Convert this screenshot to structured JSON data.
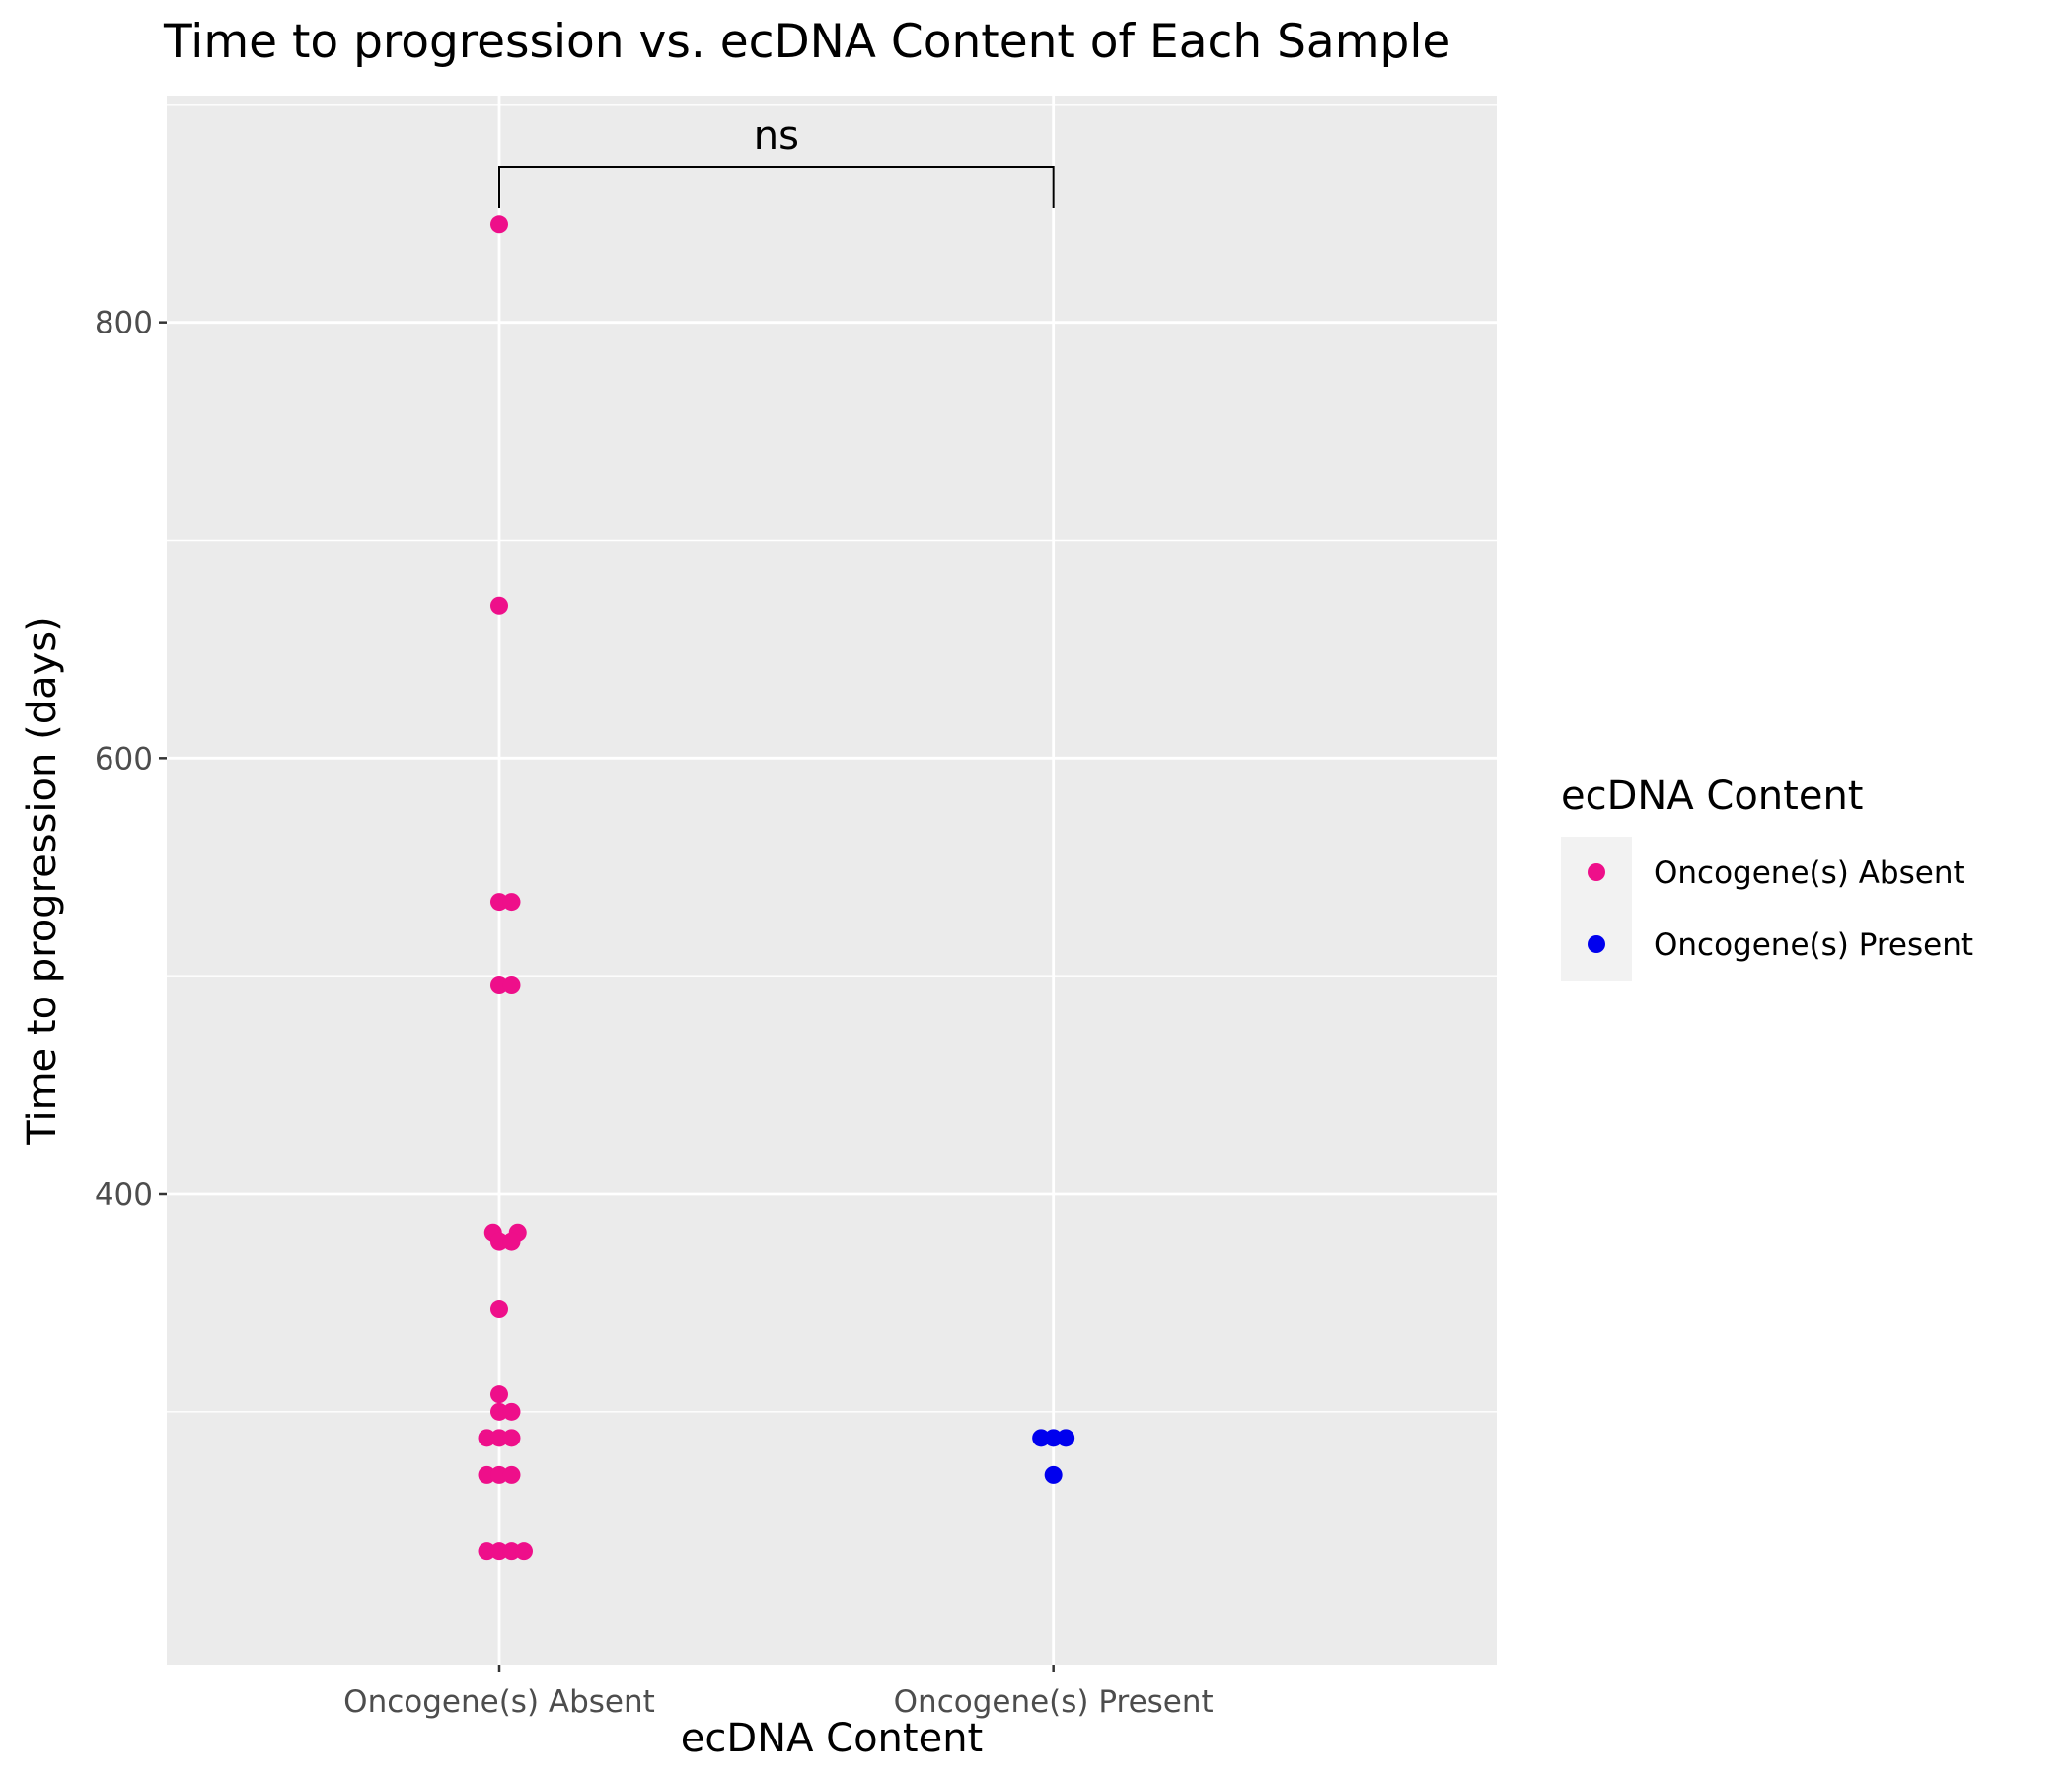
{
  "chart_data": {
    "type": "scatter",
    "title": "Time to progression vs. ecDNA Content of Each Sample",
    "xlabel": "ecDNA Content",
    "ylabel": "Time to progression (days)",
    "categories": [
      "Oncogene(s) Absent",
      "Oncogene(s) Present"
    ],
    "ylim": [
      184,
      904
    ],
    "yticks": [
      400,
      600,
      800
    ],
    "y_minor_ticks": [
      300,
      500,
      700,
      900
    ],
    "grid": true,
    "legend": {
      "title": "ecDNA Content",
      "position": "right"
    },
    "series": [
      {
        "name": "Oncogene(s) Absent",
        "color": "#ee0f8a",
        "points": [
          {
            "x": "Oncogene(s) Absent",
            "y": 845,
            "dodge": 0
          },
          {
            "x": "Oncogene(s) Absent",
            "y": 670,
            "dodge": 0
          },
          {
            "x": "Oncogene(s) Absent",
            "y": 534,
            "dodge": 0
          },
          {
            "x": "Oncogene(s) Absent",
            "y": 534,
            "dodge": 1
          },
          {
            "x": "Oncogene(s) Absent",
            "y": 496,
            "dodge": 0
          },
          {
            "x": "Oncogene(s) Absent",
            "y": 496,
            "dodge": 1
          },
          {
            "x": "Oncogene(s) Absent",
            "y": 382,
            "dodge": -0.5
          },
          {
            "x": "Oncogene(s) Absent",
            "y": 382,
            "dodge": 1.5
          },
          {
            "x": "Oncogene(s) Absent",
            "y": 378,
            "dodge": 0
          },
          {
            "x": "Oncogene(s) Absent",
            "y": 378,
            "dodge": 1
          },
          {
            "x": "Oncogene(s) Absent",
            "y": 347,
            "dodge": 0
          },
          {
            "x": "Oncogene(s) Absent",
            "y": 308,
            "dodge": 0
          },
          {
            "x": "Oncogene(s) Absent",
            "y": 300,
            "dodge": 0
          },
          {
            "x": "Oncogene(s) Absent",
            "y": 300,
            "dodge": 1
          },
          {
            "x": "Oncogene(s) Absent",
            "y": 288,
            "dodge": -1
          },
          {
            "x": "Oncogene(s) Absent",
            "y": 288,
            "dodge": 0
          },
          {
            "x": "Oncogene(s) Absent",
            "y": 288,
            "dodge": 1
          },
          {
            "x": "Oncogene(s) Absent",
            "y": 271,
            "dodge": -1
          },
          {
            "x": "Oncogene(s) Absent",
            "y": 271,
            "dodge": 0
          },
          {
            "x": "Oncogene(s) Absent",
            "y": 271,
            "dodge": 1
          },
          {
            "x": "Oncogene(s) Absent",
            "y": 236,
            "dodge": -1
          },
          {
            "x": "Oncogene(s) Absent",
            "y": 236,
            "dodge": 0
          },
          {
            "x": "Oncogene(s) Absent",
            "y": 236,
            "dodge": 1
          },
          {
            "x": "Oncogene(s) Absent",
            "y": 236,
            "dodge": 2
          }
        ]
      },
      {
        "name": "Oncogene(s) Present",
        "color": "#0000ee",
        "points": [
          {
            "x": "Oncogene(s) Present",
            "y": 288,
            "dodge": -1
          },
          {
            "x": "Oncogene(s) Present",
            "y": 288,
            "dodge": 0
          },
          {
            "x": "Oncogene(s) Present",
            "y": 288,
            "dodge": 1
          },
          {
            "x": "Oncogene(s) Present",
            "y": 271,
            "dodge": 0
          }
        ]
      }
    ],
    "annotations": [
      {
        "type": "significance",
        "from": "Oncogene(s) Absent",
        "to": "Oncogene(s) Present",
        "label": "ns"
      }
    ]
  }
}
